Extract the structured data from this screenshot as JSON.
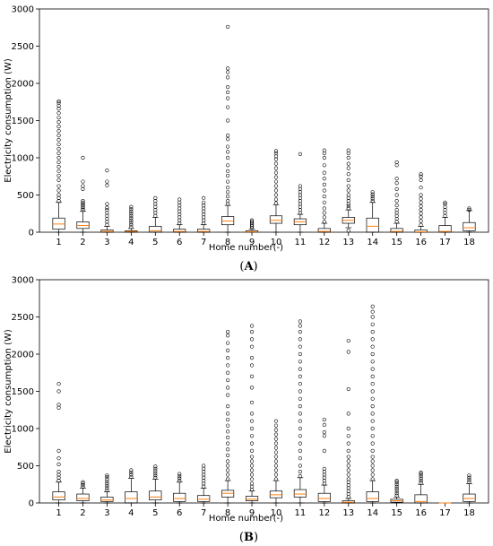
{
  "chart_data": [
    {
      "type": "box",
      "panel_label": "(A)",
      "xlabel": "Home number(-)",
      "ylabel": "Electricity consumption (W)",
      "ylim": [
        0,
        3000
      ],
      "yticks": [
        0,
        500,
        1000,
        1500,
        2000,
        2500,
        3000
      ],
      "categories": [
        "1",
        "2",
        "3",
        "4",
        "5",
        "6",
        "7",
        "8",
        "9",
        "10",
        "11",
        "12",
        "13",
        "14",
        "15",
        "16",
        "17",
        "18"
      ],
      "boxes": [
        {
          "q1": 40,
          "median": 110,
          "q3": 190,
          "wlo": 0,
          "whi": 400,
          "outliers": [
            420,
            460,
            500,
            560,
            620,
            700,
            760,
            820,
            880,
            940,
            1000,
            1060,
            1120,
            1180,
            1240,
            1300,
            1360,
            1420,
            1480,
            1540,
            1600,
            1660,
            1700,
            1740,
            1760
          ]
        },
        {
          "q1": 50,
          "median": 90,
          "q3": 140,
          "wlo": 0,
          "whi": 280,
          "outliers": [
            300,
            320,
            340,
            360,
            380,
            400,
            420,
            580,
            620,
            680,
            1000
          ]
        },
        {
          "q1": 0,
          "median": 10,
          "q3": 30,
          "wlo": 0,
          "whi": 80,
          "outliers": [
            100,
            140,
            180,
            220,
            260,
            300,
            330,
            380,
            630,
            680,
            830
          ]
        },
        {
          "q1": 0,
          "median": 10,
          "q3": 20,
          "wlo": 0,
          "whi": 50,
          "outliers": [
            70,
            100,
            130,
            160,
            190,
            220,
            250,
            280,
            310,
            340
          ]
        },
        {
          "q1": 0,
          "median": 20,
          "q3": 80,
          "wlo": 0,
          "whi": 200,
          "outliers": [
            220,
            260,
            300,
            340,
            380,
            420,
            460
          ]
        },
        {
          "q1": 0,
          "median": 10,
          "q3": 40,
          "wlo": 0,
          "whi": 100,
          "outliers": [
            120,
            160,
            200,
            240,
            280,
            320,
            360,
            400,
            440
          ]
        },
        {
          "q1": 0,
          "median": 10,
          "q3": 40,
          "wlo": 0,
          "whi": 100,
          "outliers": [
            120,
            160,
            200,
            240,
            280,
            320,
            360,
            400,
            460
          ]
        },
        {
          "q1": 100,
          "median": 150,
          "q3": 210,
          "wlo": 0,
          "whi": 360,
          "outliers": [
            380,
            420,
            480,
            540,
            600,
            680,
            760,
            820,
            900,
            1000,
            1080,
            1150,
            1250,
            1300,
            1500,
            1680,
            1800,
            1880,
            1950,
            2080,
            2150,
            2200,
            2760
          ]
        },
        {
          "q1": 0,
          "median": 5,
          "q3": 20,
          "wlo": 0,
          "whi": 40,
          "outliers": [
            60,
            80,
            100,
            120,
            140,
            160
          ]
        },
        {
          "q1": 120,
          "median": 160,
          "q3": 220,
          "wlo": 0,
          "whi": 370,
          "outliers": [
            390,
            440,
            500,
            560,
            620,
            680,
            740,
            800,
            860,
            920,
            980,
            1020,
            1060,
            1090
          ]
        },
        {
          "q1": 100,
          "median": 140,
          "q3": 180,
          "wlo": 0,
          "whi": 240,
          "outliers": [
            260,
            300,
            340,
            380,
            420,
            460,
            500,
            540,
            580,
            620,
            1050
          ]
        },
        {
          "q1": 0,
          "median": 10,
          "q3": 50,
          "wlo": 0,
          "whi": 120,
          "outliers": [
            140,
            200,
            260,
            320,
            400,
            480,
            560,
            640,
            720,
            800,
            900,
            1000,
            1060,
            1100
          ]
        },
        {
          "q1": 120,
          "median": 160,
          "q3": 200,
          "wlo": 60,
          "whi": 300,
          "outliers": [
            20,
            320,
            350,
            380,
            420,
            460,
            500,
            560,
            620,
            700,
            780,
            860,
            920,
            1000,
            1060,
            1100
          ]
        },
        {
          "q1": 0,
          "median": 80,
          "q3": 190,
          "wlo": 0,
          "whi": 400,
          "outliers": [
            420,
            450,
            480,
            510,
            540
          ]
        },
        {
          "q1": 0,
          "median": 10,
          "q3": 50,
          "wlo": 0,
          "whi": 120,
          "outliers": [
            140,
            180,
            220,
            260,
            300,
            360,
            420,
            500,
            580,
            660,
            720,
            900,
            940
          ]
        },
        {
          "q1": 0,
          "median": 5,
          "q3": 30,
          "wlo": 0,
          "whi": 80,
          "outliers": [
            100,
            150,
            200,
            250,
            300,
            350,
            400,
            450,
            500,
            600,
            700,
            750,
            780
          ]
        },
        {
          "q1": 0,
          "median": 10,
          "q3": 90,
          "wlo": 0,
          "whi": 200,
          "outliers": [
            220,
            260,
            300,
            340,
            380,
            400
          ]
        },
        {
          "q1": 20,
          "median": 60,
          "q3": 130,
          "wlo": 0,
          "whi": 290,
          "outliers": [
            300,
            320
          ]
        }
      ]
    },
    {
      "type": "box",
      "panel_label": "(B)",
      "xlabel": "Home number(-)",
      "ylabel": "Electricity consumption (W)",
      "ylim": [
        0,
        3000
      ],
      "yticks": [
        0,
        500,
        1000,
        1500,
        2000,
        2500,
        3000
      ],
      "categories": [
        "1",
        "2",
        "3",
        "4",
        "5",
        "6",
        "7",
        "8",
        "9",
        "10",
        "11",
        "12",
        "13",
        "14",
        "15",
        "16",
        "17",
        "18"
      ],
      "boxes": [
        {
          "q1": 40,
          "median": 80,
          "q3": 150,
          "wlo": 0,
          "whi": 280,
          "outliers": [
            300,
            340,
            380,
            420,
            520,
            600,
            700,
            1280,
            1320,
            1500,
            1600
          ]
        },
        {
          "q1": 30,
          "median": 60,
          "q3": 120,
          "wlo": 0,
          "whi": 200,
          "outliers": [
            220,
            240,
            260,
            280
          ]
        },
        {
          "q1": 20,
          "median": 40,
          "q3": 80,
          "wlo": 0,
          "whi": 150,
          "outliers": [
            170,
            200,
            230,
            260,
            290,
            320,
            350,
            370
          ]
        },
        {
          "q1": 0,
          "median": 60,
          "q3": 150,
          "wlo": 0,
          "whi": 330,
          "outliers": [
            350,
            380,
            410,
            440
          ]
        },
        {
          "q1": 40,
          "median": 80,
          "q3": 160,
          "wlo": 0,
          "whi": 320,
          "outliers": [
            340,
            370,
            400,
            430,
            460,
            490
          ]
        },
        {
          "q1": 20,
          "median": 60,
          "q3": 130,
          "wlo": 0,
          "whi": 280,
          "outliers": [
            300,
            330,
            360,
            390
          ]
        },
        {
          "q1": 20,
          "median": 50,
          "q3": 100,
          "wlo": 0,
          "whi": 200,
          "outliers": [
            220,
            260,
            300,
            340,
            380,
            420,
            460,
            500
          ]
        },
        {
          "q1": 80,
          "median": 130,
          "q3": 170,
          "wlo": 0,
          "whi": 300,
          "outliers": [
            320,
            380,
            440,
            500,
            560,
            640,
            720,
            800,
            880,
            960,
            1040,
            1120,
            1200,
            1300,
            1450,
            1550,
            1650,
            1750,
            1850,
            1950,
            2050,
            2150,
            2250,
            2300
          ]
        },
        {
          "q1": 30,
          "median": 50,
          "q3": 90,
          "wlo": 0,
          "whi": 160,
          "outliers": [
            180,
            220,
            260,
            320,
            380,
            440,
            500,
            560,
            620,
            700,
            800,
            900,
            1000,
            1100,
            1200,
            1350,
            1550,
            1700,
            1850,
            1950,
            2100,
            2200,
            2300,
            2380
          ]
        },
        {
          "q1": 70,
          "median": 110,
          "q3": 160,
          "wlo": 0,
          "whi": 300,
          "outliers": [
            320,
            380,
            440,
            500,
            560,
            620,
            680,
            740,
            800,
            860,
            920,
            980,
            1040,
            1100
          ]
        },
        {
          "q1": 80,
          "median": 120,
          "q3": 180,
          "wlo": 0,
          "whi": 340,
          "outliers": [
            360,
            420,
            500,
            600,
            700,
            800,
            900,
            1000,
            1100,
            1200,
            1300,
            1400,
            1500,
            1600,
            1700,
            1800,
            1900,
            2000,
            2100,
            2200,
            2300,
            2380,
            2440
          ]
        },
        {
          "q1": 20,
          "median": 60,
          "q3": 130,
          "wlo": 0,
          "whi": 240,
          "outliers": [
            260,
            300,
            340,
            380,
            420,
            460,
            700,
            900,
            950,
            1050,
            1120
          ]
        },
        {
          "q1": 0,
          "median": 10,
          "q3": 30,
          "wlo": 0,
          "whi": 60,
          "outliers": [
            80,
            120,
            160,
            200,
            240,
            280,
            320,
            380,
            440,
            500,
            560,
            620,
            700,
            800,
            900,
            1000,
            1200,
            1530,
            2030,
            2180
          ]
        },
        {
          "q1": 20,
          "median": 60,
          "q3": 150,
          "wlo": 0,
          "whi": 300,
          "outliers": [
            320,
            380,
            440,
            500,
            560,
            620,
            700,
            800,
            900,
            1000,
            1100,
            1200,
            1300,
            1400,
            1500,
            1600,
            1700,
            1800,
            1900,
            2000,
            2100,
            2200,
            2300,
            2400,
            2500,
            2570,
            2640
          ]
        },
        {
          "q1": 10,
          "median": 30,
          "q3": 50,
          "wlo": 0,
          "whi": 80,
          "outliers": [
            100,
            130,
            160,
            190,
            220,
            250,
            280,
            300
          ]
        },
        {
          "q1": 0,
          "median": 20,
          "q3": 110,
          "wlo": 0,
          "whi": 250,
          "outliers": [
            270,
            300,
            330,
            360,
            390,
            410
          ]
        },
        {
          "q1": 0,
          "median": 0,
          "q3": 0,
          "wlo": 0,
          "whi": 0,
          "outliers": []
        },
        {
          "q1": 20,
          "median": 60,
          "q3": 120,
          "wlo": 0,
          "whi": 260,
          "outliers": [
            280,
            310,
            340,
            370
          ]
        }
      ]
    }
  ],
  "colors": {
    "box": "#000000",
    "median": "#ff7f0e",
    "outlier": "#000000",
    "frame": "#000000"
  }
}
